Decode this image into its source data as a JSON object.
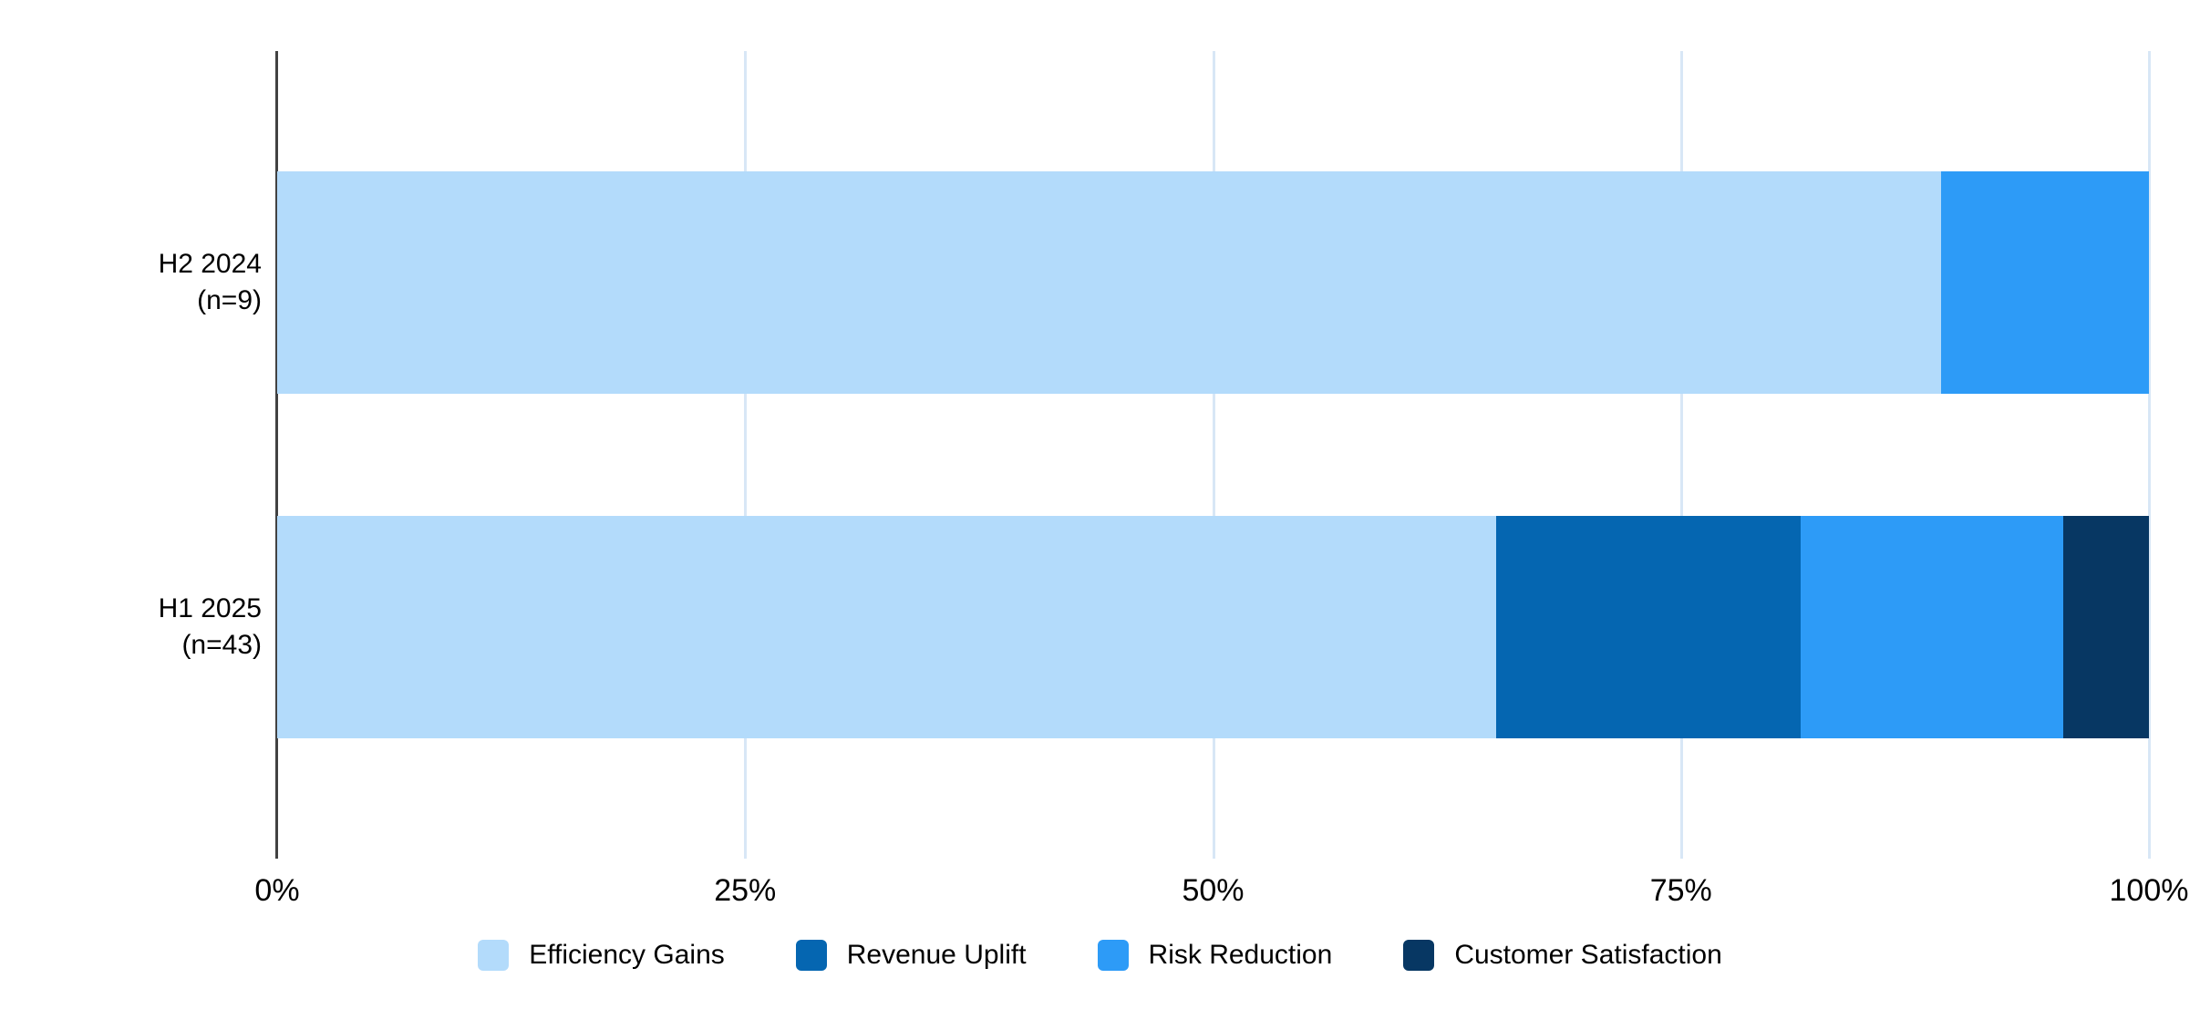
{
  "chart_data": {
    "type": "bar",
    "stacked": true,
    "orientation": "horizontal",
    "title": "",
    "xlabel": "",
    "ylabel": "",
    "categories": [
      {
        "label_lines": [
          "H2 2024",
          "(n=9)"
        ]
      },
      {
        "label_lines": [
          "H1 2025",
          "(n=43)"
        ]
      }
    ],
    "series": [
      {
        "name": "Efficiency Gains",
        "color": "#B3DBFB",
        "values": [
          88.9,
          65.1
        ]
      },
      {
        "name": "Revenue Uplift",
        "color": "#0566B1",
        "values": [
          0,
          16.3
        ]
      },
      {
        "name": "Risk Reduction",
        "color": "#2D9BF7",
        "values": [
          11.1,
          14.0
        ]
      },
      {
        "name": "Customer Satisfaction",
        "color": "#073763",
        "values": [
          0,
          4.7
        ]
      }
    ],
    "x_axis": {
      "min": 0,
      "max": 100,
      "ticks": [
        {
          "label": "0%",
          "value": 0
        },
        {
          "label": "25%",
          "value": 25
        },
        {
          "label": "50%",
          "value": 50
        },
        {
          "label": "75%",
          "value": 75
        },
        {
          "label": "100%",
          "value": 100
        }
      ]
    },
    "grid": true,
    "legend_position": "bottom",
    "colors": {
      "axis_line": "#424242",
      "gridline": "#D8E7F6",
      "text": "#000000",
      "background": "#FFFFFF"
    }
  }
}
